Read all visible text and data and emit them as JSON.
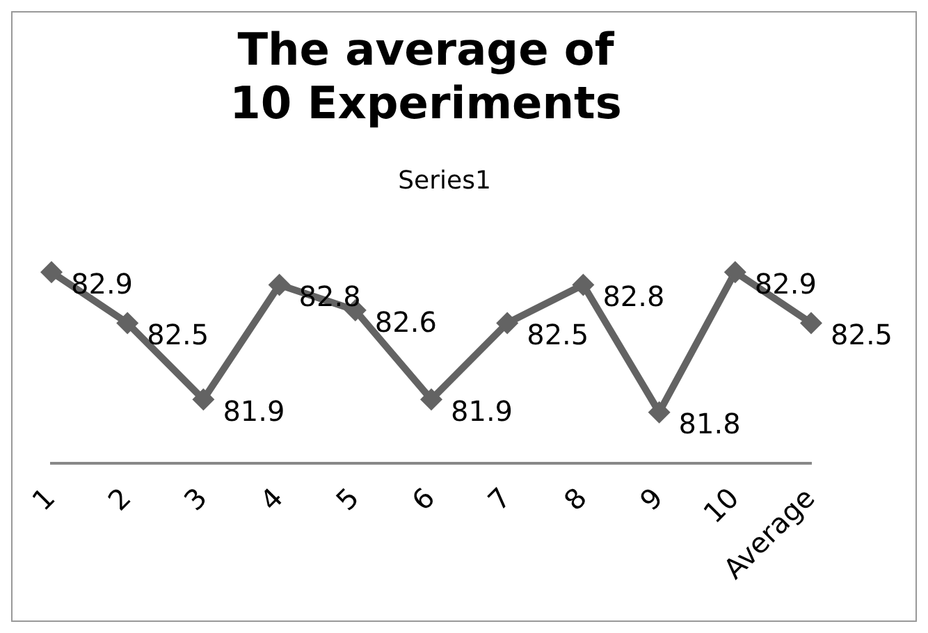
{
  "chart_data": {
    "type": "line",
    "title": "The average of 10 Experiments",
    "categories": [
      "1",
      "2",
      "3",
      "4",
      "5",
      "6",
      "7",
      "8",
      "9",
      "10",
      "Average"
    ],
    "series": [
      {
        "name": "Series1",
        "color": "#636363",
        "values": [
          82.9,
          82.5,
          81.9,
          82.8,
          82.6,
          81.9,
          82.5,
          82.8,
          81.8,
          82.9,
          82.5
        ]
      }
    ],
    "tick_labels": "x",
    "grid": false,
    "legend": "top",
    "marker": "diamond",
    "line_style": "solid",
    "data_labels": true
  }
}
